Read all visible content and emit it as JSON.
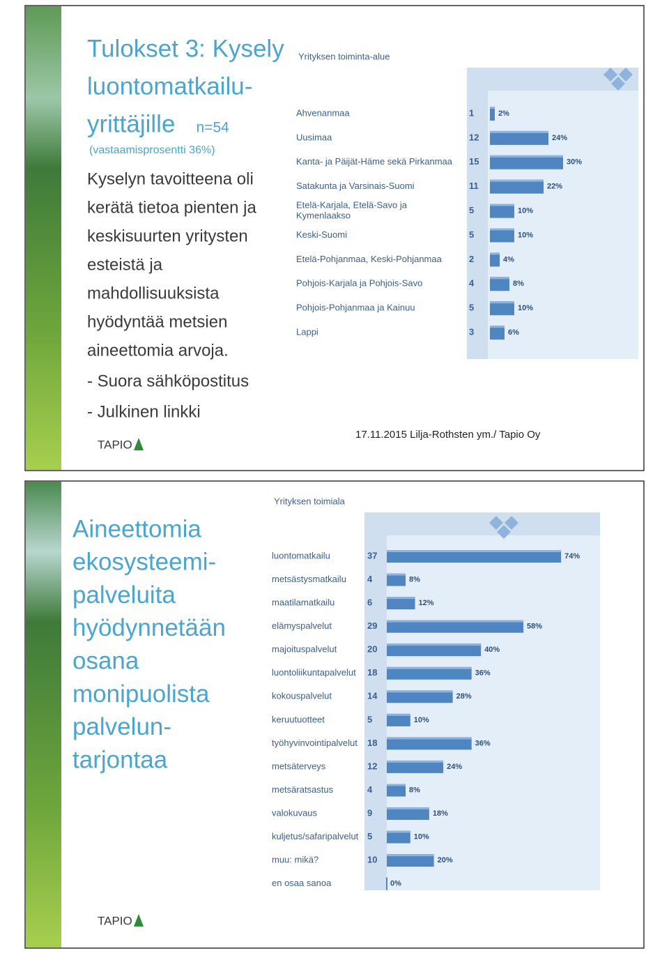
{
  "slides": [
    {
      "title_lines": [
        "Tulokset 3: Kysely",
        "luontomatkailu-",
        "yrittäjille"
      ],
      "sample": "n=54",
      "response_rate": "(vastaamisprosentti 36%)",
      "body_lines": [
        "Kyselyn tavoitteena oli",
        "kerätä tietoa pienten ja",
        "keskisuurten yritysten",
        "esteistä ja",
        "mahdollisuuksista",
        "hyödyntää metsien",
        "aineettomia arvoja."
      ],
      "bullets": [
        " - Suora sähköpostitus",
        "- Julkinen linkki"
      ],
      "footer": "17.11.2015 Lilja-Rothsten ym./ Tapio Oy",
      "logo": "TAPIO"
    },
    {
      "title_lines": [
        "Aineettomia",
        "ekosysteemi-",
        "palveluita",
        "hyödynnetään",
        "osana",
        "monipuolista",
        "palvelun-",
        "tarjontaa"
      ],
      "logo": "TAPIO"
    }
  ],
  "chart_data": [
    {
      "type": "bar",
      "orientation": "horizontal",
      "title": "Yrityksen toiminta-alue",
      "color": "#4f85c0",
      "categories": [
        "Ahvenanmaa",
        "Uusimaa",
        "Kanta- ja Päijät-Häme sekä Pirkanmaa",
        "Satakunta ja Varsinais-Suomi",
        "Etelä-Karjala, Etelä-Savo ja\nKymenlaakso",
        "Keski-Suomi",
        "Etelä-Pohjanmaa, Keski-Pohjanmaa",
        "Pohjois-Karjala ja Pohjois-Savo",
        "Pohjois-Pohjanmaa ja Kainuu",
        "Lappi"
      ],
      "counts": [
        1,
        12,
        15,
        11,
        5,
        5,
        2,
        4,
        5,
        3
      ],
      "values": [
        2,
        24,
        30,
        22,
        10,
        10,
        4,
        8,
        10,
        6
      ],
      "value_labels": [
        "2%",
        "24%",
        "30%",
        "22%",
        "10%",
        "10%",
        "4%",
        "8%",
        "10%",
        "6%"
      ]
    },
    {
      "type": "bar",
      "orientation": "horizontal",
      "title": "Yrityksen toimiala",
      "color": "#4f85c0",
      "categories": [
        "luontomatkailu",
        "metsästysmatkailu",
        "maatilamatkailu",
        "elämyspalvelut",
        "majoituspalvelut",
        "luontoliikuntapalvelut",
        "kokouspalvelut",
        "keruutuotteet",
        "työhyvinvointipalvelut",
        "metsäterveys",
        "metsäratsastus",
        "valokuvaus",
        "kuljetus/safaripalvelut",
        "muu: mikä?",
        "en osaa sanoa"
      ],
      "counts": [
        37,
        4,
        6,
        29,
        20,
        18,
        14,
        5,
        18,
        12,
        4,
        9,
        5,
        10,
        null
      ],
      "values": [
        74,
        8,
        12,
        58,
        40,
        36,
        28,
        10,
        36,
        24,
        8,
        18,
        10,
        20,
        0
      ],
      "value_labels": [
        "74%",
        "8%",
        "12%",
        "58%",
        "40%",
        "36%",
        "28%",
        "10%",
        "36%",
        "24%",
        "8%",
        "18%",
        "10%",
        "20%",
        "0%"
      ]
    }
  ]
}
